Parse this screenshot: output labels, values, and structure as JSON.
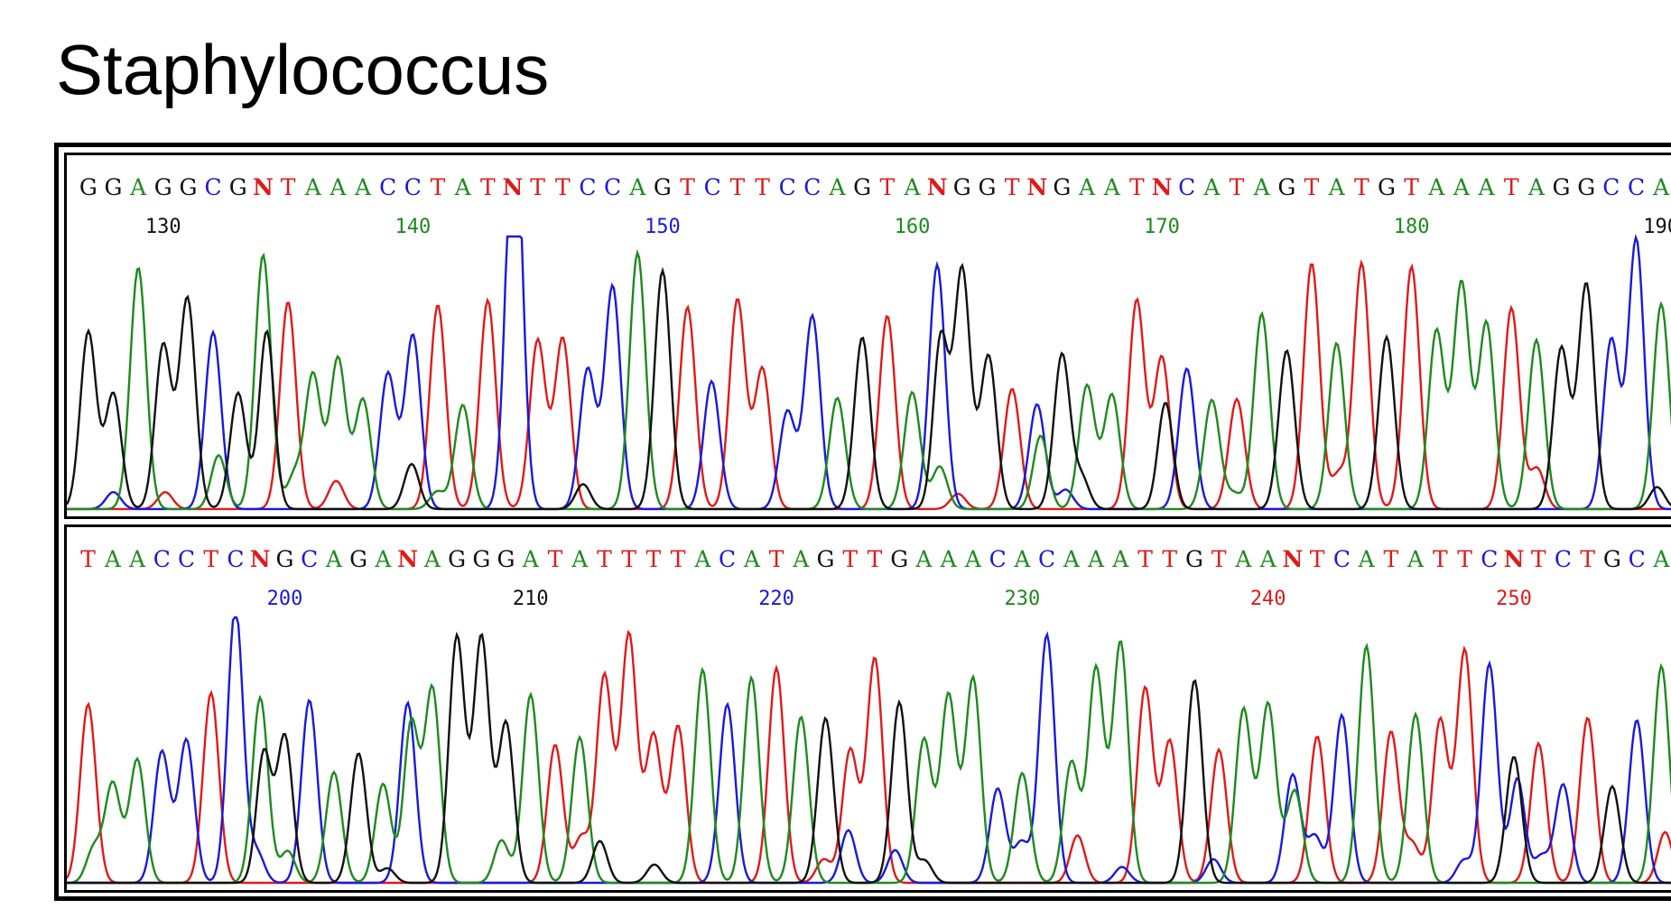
{
  "title": "Staphylococcus",
  "colors": {
    "A": "#1e8a1e",
    "C": "#1a1adc",
    "G": "#111111",
    "T": "#e01a1a",
    "N": "#e01a1a"
  },
  "chart_data": {
    "type": "line",
    "title": "Staphylococcus",
    "series": [
      {
        "name": "",
        "color": "#1e8a1e"
      },
      {
        "name": "",
        "color": "#1a1adc"
      },
      {
        "name": "",
        "color": "#111111"
      },
      {
        "name": "",
        "color": "#e01a1a"
      }
    ],
    "panels": [
      {
        "start": 127,
        "bases": "GGAGGCGNTAAACCTATNTTCCAGTCTTCCAGTANGGTNGAATNCATAGTATGTAAATAGGCCA",
        "ticks": [
          130,
          140,
          150,
          160,
          170,
          180,
          190
        ],
        "tick_colors": [
          "#111111",
          "#1e8a1e",
          "#1a1adc",
          "#1e8a1e",
          "#1e8a1e",
          "#1e8a1e",
          "#111111"
        ]
      },
      {
        "start": 192,
        "bases": "TAACCTCNGCAGANAGGGATATTTTACATAGTTGAAACACAAATTGTAANTCATATTCNTCTGCA",
        "ticks": [
          200,
          210,
          220,
          230,
          240,
          250
        ],
        "tick_colors": [
          "#1a1adc",
          "#111111",
          "#1a1adc",
          "#1e8a1e",
          "#e01a1a",
          "#e01a1a"
        ]
      }
    ]
  }
}
